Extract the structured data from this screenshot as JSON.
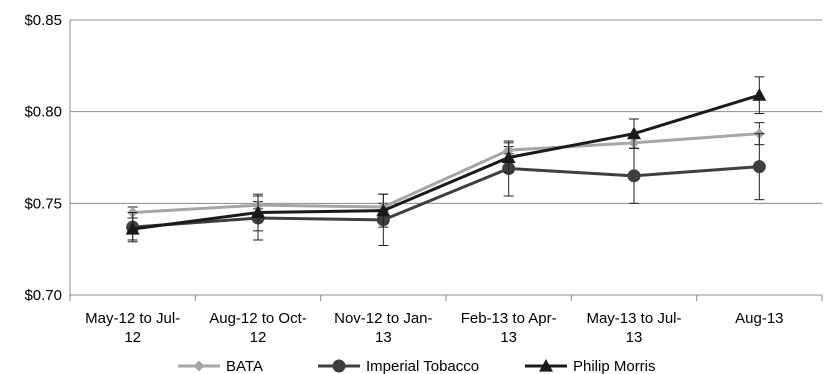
{
  "chart_data": {
    "type": "line",
    "categories": [
      [
        "May-12 to Jul-",
        "12"
      ],
      [
        "Aug-12 to Oct-",
        "12"
      ],
      [
        "Nov-12 to Jan-",
        "13"
      ],
      [
        "Feb-13 to Apr-",
        "13"
      ],
      [
        "May-13 to Jul-",
        "13"
      ],
      [
        "Aug-13"
      ]
    ],
    "y_ticks": [
      "$0.70",
      "$0.75",
      "$0.80",
      "$0.85"
    ],
    "y_tick_values": [
      0.7,
      0.75,
      0.8,
      0.85
    ],
    "ylim": [
      0.7,
      0.85
    ],
    "grid": "horizontal",
    "legend_position": "bottom",
    "series": [
      {
        "name": "BATA",
        "color": "#a6a6a6",
        "marker": "diamond",
        "values": [
          0.745,
          0.749,
          0.748,
          0.779,
          0.783,
          0.788
        ],
        "error": [
          0.003,
          0.002,
          0.002,
          0.002,
          0.003,
          0.006
        ]
      },
      {
        "name": "Imperial Tobacco",
        "color": "#3f3f3f",
        "marker": "circle",
        "values": [
          0.737,
          0.742,
          0.741,
          0.769,
          0.765,
          0.77
        ],
        "error": [
          0.008,
          0.012,
          0.014,
          0.015,
          0.015,
          0.018
        ]
      },
      {
        "name": "Philip Morris",
        "color": "#1a1a1a",
        "marker": "triangle",
        "values": [
          0.736,
          0.745,
          0.746,
          0.775,
          0.788,
          0.809
        ],
        "error": [
          0.006,
          0.01,
          0.009,
          0.008,
          0.008,
          0.01
        ]
      }
    ]
  }
}
